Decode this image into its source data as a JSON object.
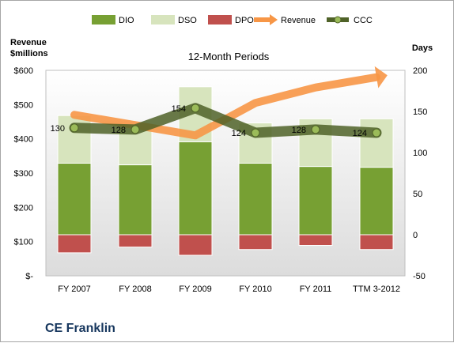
{
  "company": "CE Franklin",
  "chart_data": {
    "type": "bar",
    "title": "12-Month Periods",
    "ylabel_left": "Revenue $millions",
    "ylabel_right": "Days",
    "categories": [
      "FY 2007",
      "FY 2008",
      "FY 2009",
      "FY 2010",
      "FY 2011",
      "TTM 3-2012"
    ],
    "left_axis": {
      "ticks": [
        "$-",
        "$100",
        "$200",
        "$300",
        "$400",
        "$500",
        "$600"
      ],
      "range": [
        0,
        600
      ]
    },
    "right_axis": {
      "ticks": [
        "-50",
        "0",
        "50",
        "100",
        "150",
        "200"
      ],
      "range": [
        -50,
        200
      ]
    },
    "legend_position": "top",
    "grid": false,
    "series": [
      {
        "name": "DIO",
        "kind": "stacked-bar",
        "axis": "right",
        "color": "#77a033",
        "values": [
          87,
          85,
          113,
          87,
          83,
          82
        ]
      },
      {
        "name": "DSO",
        "kind": "stacked-bar",
        "axis": "right",
        "color": "#d7e4bd",
        "values": [
          58,
          48,
          67,
          49,
          58,
          59
        ]
      },
      {
        "name": "DPO",
        "kind": "negative-bar",
        "axis": "right",
        "color": "#c0504d",
        "values": [
          -22,
          -15,
          -25,
          -18,
          -13,
          -18
        ]
      },
      {
        "name": "Revenue",
        "kind": "arrow-line",
        "axis": "left",
        "color": "#f79646",
        "values": [
          470,
          440,
          410,
          505,
          550,
          580
        ]
      },
      {
        "name": "CCC",
        "kind": "line",
        "axis": "right",
        "color": "#4f6228",
        "values": [
          130,
          128,
          154,
          124,
          128,
          124
        ]
      }
    ]
  }
}
